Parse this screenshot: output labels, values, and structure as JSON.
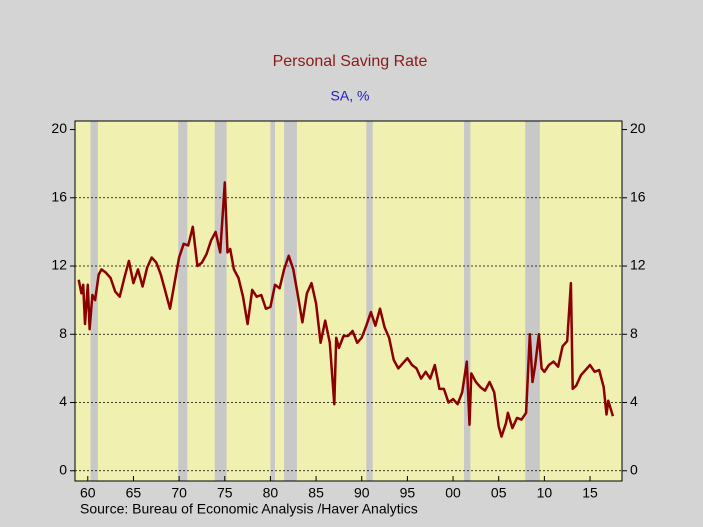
{
  "chart_data": {
    "type": "line",
    "title": "Personal Saving Rate",
    "subtitle": "SA, %",
    "source": "Source:  Bureau of Economic Analysis /Haver Analytics",
    "x": [
      1959.0,
      1959.3,
      1959.5,
      1959.7,
      1960.0,
      1960.2,
      1960.5,
      1960.8,
      1961.2,
      1961.5,
      1962.0,
      1962.5,
      1963.0,
      1963.5,
      1964.0,
      1964.5,
      1965.0,
      1965.5,
      1966.0,
      1966.5,
      1967.0,
      1967.5,
      1968.0,
      1968.5,
      1969.0,
      1969.5,
      1970.0,
      1970.5,
      1971.0,
      1971.5,
      1972.0,
      1972.5,
      1973.0,
      1973.5,
      1974.0,
      1974.5,
      1975.0,
      1975.3,
      1975.6,
      1976.0,
      1976.5,
      1977.0,
      1977.5,
      1978.0,
      1978.5,
      1979.0,
      1979.5,
      1980.0,
      1980.5,
      1981.0,
      1981.5,
      1982.0,
      1982.5,
      1983.0,
      1983.5,
      1984.0,
      1984.5,
      1985.0,
      1985.5,
      1986.0,
      1986.5,
      1987.0,
      1987.2,
      1987.5,
      1988.0,
      1988.5,
      1989.0,
      1989.5,
      1990.0,
      1990.5,
      1991.0,
      1991.5,
      1992.0,
      1992.5,
      1993.0,
      1993.5,
      1994.0,
      1994.5,
      1995.0,
      1995.5,
      1996.0,
      1996.5,
      1997.0,
      1997.5,
      1998.0,
      1998.5,
      1999.0,
      1999.5,
      2000.0,
      2000.5,
      2001.0,
      2001.5,
      2001.8,
      2002.0,
      2002.5,
      2003.0,
      2003.5,
      2004.0,
      2004.5,
      2005.0,
      2005.3,
      2005.8,
      2006.0,
      2006.5,
      2007.0,
      2007.5,
      2008.0,
      2008.4,
      2008.7,
      2009.0,
      2009.4,
      2009.7,
      2010.0,
      2010.5,
      2011.0,
      2011.5,
      2012.0,
      2012.5,
      2012.9,
      2013.1,
      2013.5,
      2014.0,
      2014.5,
      2015.0,
      2015.5,
      2016.0,
      2016.5,
      2016.8,
      2017.0,
      2017.5
    ],
    "series": [
      {
        "color": "#8b0000",
        "values": [
          11.2,
          10.4,
          10.9,
          8.6,
          10.9,
          8.3,
          10.3,
          10.0,
          11.5,
          11.8,
          11.6,
          11.3,
          10.5,
          10.2,
          11.3,
          12.3,
          11.0,
          11.8,
          10.8,
          11.9,
          12.5,
          12.2,
          11.5,
          10.5,
          9.5,
          11.0,
          12.5,
          13.3,
          13.2,
          14.3,
          12.0,
          12.2,
          12.7,
          13.5,
          14.0,
          12.8,
          16.9,
          12.8,
          13.0,
          11.8,
          11.3,
          10.2,
          8.6,
          10.6,
          10.2,
          10.3,
          9.5,
          9.6,
          10.9,
          10.7,
          11.8,
          12.6,
          11.8,
          10.3,
          8.7,
          10.4,
          11.0,
          9.8,
          7.5,
          8.8,
          7.5,
          3.9,
          7.8,
          7.2,
          7.9,
          7.9,
          8.2,
          7.5,
          7.8,
          8.5,
          9.3,
          8.5,
          9.5,
          8.4,
          7.8,
          6.5,
          6.0,
          6.3,
          6.6,
          6.2,
          6.0,
          5.4,
          5.8,
          5.4,
          6.2,
          4.8,
          4.8,
          4.0,
          4.2,
          3.9,
          4.6,
          6.4,
          2.7,
          5.7,
          5.2,
          4.9,
          4.7,
          5.2,
          4.6,
          2.6,
          2.0,
          2.8,
          3.4,
          2.5,
          3.1,
          3.0,
          3.4,
          8.0,
          5.2,
          6.2,
          8.0,
          6.0,
          5.8,
          6.2,
          6.4,
          6.1,
          7.3,
          7.6,
          11.0,
          4.8,
          5.0,
          5.6,
          5.9,
          6.2,
          5.8,
          5.9,
          4.9,
          3.3,
          4.1,
          3.2
        ]
      }
    ],
    "recessions": [
      [
        1960.3,
        1961.1
      ],
      [
        1969.9,
        1970.9
      ],
      [
        1973.9,
        1975.2
      ],
      [
        1980.0,
        1980.5
      ],
      [
        1981.5,
        1982.9
      ],
      [
        1990.5,
        1991.2
      ],
      [
        2001.2,
        2001.9
      ],
      [
        2007.9,
        2009.5
      ]
    ],
    "recession_color": "#c8c8c8",
    "xlim": [
      1958.6,
      2018.5
    ],
    "xticks": [
      {
        "value": 1960,
        "label": "60"
      },
      {
        "value": 1965,
        "label": "65"
      },
      {
        "value": 1970,
        "label": "70"
      },
      {
        "value": 1975,
        "label": "75"
      },
      {
        "value": 1980,
        "label": "80"
      },
      {
        "value": 1985,
        "label": "85"
      },
      {
        "value": 1990,
        "label": "90"
      },
      {
        "value": 1995,
        "label": "95"
      },
      {
        "value": 2000,
        "label": "00"
      },
      {
        "value": 2005,
        "label": "05"
      },
      {
        "value": 2010,
        "label": "10"
      },
      {
        "value": 2015,
        "label": "15"
      }
    ],
    "ylim": [
      -0.6,
      20.5
    ],
    "yticks": [
      0,
      4,
      8,
      12,
      16,
      20
    ],
    "y2lim": [
      -0.6,
      20.5
    ],
    "y2ticks": [
      0,
      4,
      8,
      12,
      16,
      20
    ],
    "grid": true
  }
}
